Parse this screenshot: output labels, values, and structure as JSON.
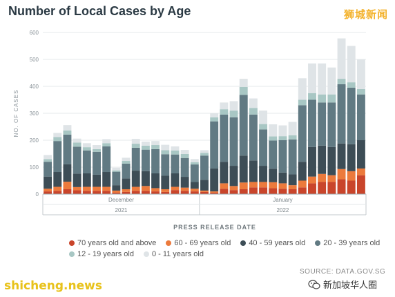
{
  "header": {
    "title": "Number of Local Cases by Age",
    "brand_top": "狮城新闻"
  },
  "footer": {
    "source": "SOURCE: DATA.GOV.SG",
    "brand_left": "shicheng.news",
    "brand_right": "新加坡华人圈",
    "wechat_icon": "wechat-icon"
  },
  "colors": {
    "70+": "#c9452b",
    "60-69": "#ec7a3c",
    "40-59": "#3d4d56",
    "20-39": "#617a83",
    "12-19": "#a8c7c4",
    "0-11": "#dfe4e7"
  },
  "chart_data": {
    "type": "bar",
    "stacked": true,
    "title": "Number of Local Cases by Age",
    "xlabel": "PRESS RELEASE DATE",
    "ylabel": "NO. OF CASES",
    "ylim": [
      0,
      600
    ],
    "yticks": [
      0,
      100,
      200,
      300,
      400,
      500,
      600
    ],
    "month_labels": [
      "December",
      "January"
    ],
    "year_labels": [
      "2021",
      "2022"
    ],
    "month_split_after_index": 15,
    "legend_placement": "bottom",
    "legend": [
      "70 years old and above",
      "60 - 69 years old",
      "40 - 59 years old",
      "20 - 39 years old",
      "12 - 19 years old",
      "0 - 11 years old"
    ],
    "series": [
      {
        "name": "70 years old and above",
        "key": "70+",
        "values": [
          10,
          12,
          18,
          14,
          12,
          12,
          12,
          5,
          8,
          12,
          12,
          10,
          8,
          15,
          12,
          10,
          8,
          5,
          20,
          15,
          18,
          25,
          25,
          22,
          20,
          18,
          25,
          40,
          45,
          45,
          55,
          50,
          70
        ]
      },
      {
        "name": "60 - 69 years old",
        "key": "60-69",
        "values": [
          10,
          15,
          28,
          12,
          15,
          15,
          15,
          8,
          10,
          15,
          18,
          12,
          10,
          12,
          12,
          10,
          5,
          5,
          20,
          15,
          25,
          20,
          20,
          22,
          20,
          15,
          25,
          25,
          30,
          25,
          38,
          35,
          25
        ]
      },
      {
        "name": "40 - 59 years old",
        "key": "40-59",
        "values": [
          45,
          55,
          65,
          50,
          50,
          45,
          55,
          20,
          40,
          60,
          55,
          55,
          50,
          50,
          40,
          25,
          40,
          85,
          80,
          75,
          100,
          80,
          60,
          50,
          40,
          40,
          70,
          110,
          105,
          105,
          95,
          100,
          105
        ]
      },
      {
        "name": "20 - 39 years old",
        "key": "20-39",
        "values": [
          55,
          115,
          110,
          100,
          85,
          85,
          95,
          50,
          55,
          85,
          80,
          90,
          80,
          70,
          70,
          65,
          90,
          175,
          175,
          180,
          225,
          170,
          135,
          105,
          120,
          130,
          210,
          175,
          160,
          165,
          220,
          210,
          170
        ]
      },
      {
        "name": "12 - 19 years old",
        "key": "12-19",
        "values": [
          10,
          15,
          15,
          15,
          12,
          10,
          12,
          5,
          10,
          15,
          15,
          15,
          15,
          15,
          15,
          8,
          10,
          15,
          20,
          25,
          30,
          25,
          20,
          15,
          15,
          15,
          20,
          25,
          30,
          30,
          20,
          20,
          20
        ]
      },
      {
        "name": "0 - 11 years old",
        "key": "0-11",
        "values": [
          15,
          15,
          20,
          15,
          15,
          15,
          15,
          10,
          12,
          18,
          15,
          15,
          20,
          15,
          15,
          12,
          10,
          15,
          25,
          35,
          30,
          35,
          50,
          45,
          40,
          50,
          80,
          110,
          115,
          100,
          150,
          135,
          110
        ]
      }
    ]
  }
}
